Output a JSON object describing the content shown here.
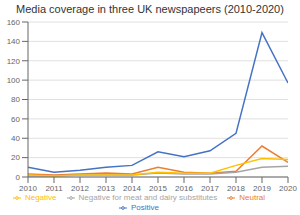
{
  "chart_data": {
    "type": "line",
    "title": "Media coverage in three UK newspapeers (2010-2020)",
    "x": [
      2010,
      2011,
      2012,
      2013,
      2014,
      2015,
      2016,
      2017,
      2018,
      2019,
      2020
    ],
    "xlim": [
      2010,
      2020
    ],
    "xticks": [
      2010,
      2011,
      2012,
      2013,
      2014,
      2015,
      2016,
      2017,
      2018,
      2019,
      2020
    ],
    "ylim": [
      0,
      160
    ],
    "yticks": [
      0,
      20,
      40,
      60,
      80,
      100,
      120,
      140,
      160
    ],
    "grid": true,
    "legend": "bottom",
    "series": [
      {
        "name": "Positive",
        "color": "#4472c4",
        "values": [
          10,
          5,
          7,
          10,
          12,
          26,
          21,
          27,
          45,
          149,
          97
        ]
      },
      {
        "name": "Neutral",
        "color": "#ed7d31",
        "values": [
          3,
          2,
          3,
          4,
          3,
          10,
          5,
          4,
          6,
          32,
          15
        ]
      },
      {
        "name": "Negative for meat and dairy substitutes",
        "color": "#a5a5a5",
        "values": [
          1,
          1,
          2,
          2,
          2,
          4,
          3,
          3,
          5,
          10,
          11
        ]
      },
      {
        "name": "Negative",
        "color": "#ffc000",
        "values": [
          2,
          1,
          2,
          2,
          2,
          5,
          4,
          4,
          12,
          19,
          18
        ]
      }
    ]
  }
}
